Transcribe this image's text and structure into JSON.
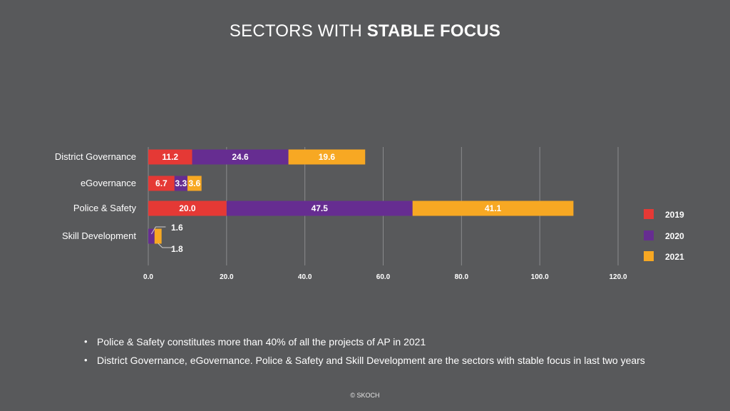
{
  "slide": {
    "title_prefix": "SECTORS WITH ",
    "title_bold": "STABLE FOCUS",
    "bullets": [
      "Police & Safety constitutes more than 40% of all the projects of AP in 2021",
      "District Governance, eGovernance. Police & Safety and Skill Development are the sectors with stable focus in last two years"
    ],
    "footer": "© SKOCH"
  },
  "colors": {
    "background": "#58595b",
    "2019": "#e53935",
    "2020": "#662d91",
    "2021": "#f7a823",
    "grid": "#8a8b8d"
  },
  "chart_data": {
    "type": "bar",
    "orientation": "horizontal",
    "stacked": true,
    "categories": [
      "District Governance",
      "eGovernance",
      "Police & Safety",
      "Skill Development"
    ],
    "series": [
      {
        "name": "2019",
        "color": "#e53935",
        "values": [
          11.2,
          6.7,
          20.0,
          0
        ]
      },
      {
        "name": "2020",
        "color": "#662d91",
        "values": [
          24.6,
          3.3,
          47.5,
          1.6
        ]
      },
      {
        "name": "2021",
        "color": "#f7a823",
        "values": [
          19.6,
          3.6,
          41.1,
          1.8
        ]
      }
    ],
    "data_labels": [
      [
        "11.2",
        "6.7",
        "20.0",
        ""
      ],
      [
        "24.6",
        "3.3",
        "47.5",
        "1.6"
      ],
      [
        "19.6",
        "3.6",
        "41.1",
        "1.8"
      ]
    ],
    "xlim": [
      0,
      120
    ],
    "xticks": [
      0,
      20,
      40,
      60,
      80,
      100,
      120
    ],
    "xtick_labels": [
      "0.0",
      "20.0",
      "40.0",
      "60.0",
      "80.0",
      "100.0",
      "120.0"
    ],
    "grid": "vertical",
    "legend": [
      "2019",
      "2020",
      "2021"
    ],
    "legend_position": "right"
  }
}
